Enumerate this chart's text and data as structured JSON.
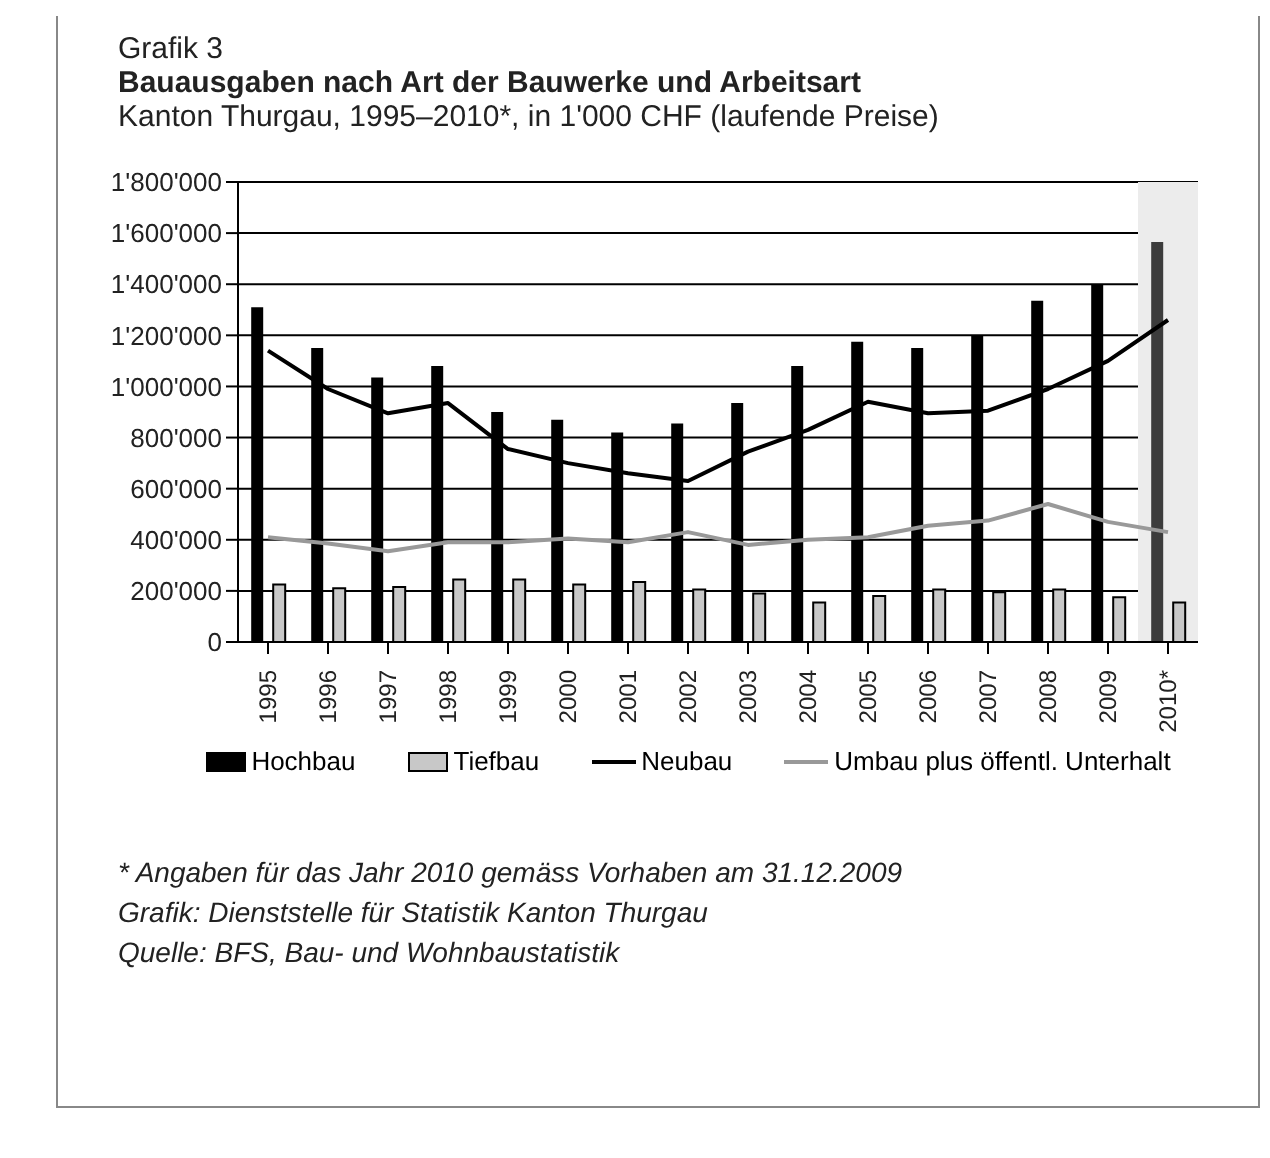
{
  "chart_data": {
    "type": "bar",
    "title": "Bauausgaben nach Art der Bauwerke und Arbeitsart",
    "subtitle": "Kanton Thurgau, 1995–2010*, in 1'000 CHF (laufende Preise)",
    "annotations": [
      "Grafik 3",
      "* Angaben für das Jahr 2010 gemäss Vorhaben am 31.12.2009",
      "Grafik: Dienststelle für Statistik Kanton Thurgau",
      "Quelle: BFS, Bau- und Wohnbaustatistik"
    ],
    "categories": [
      "1995",
      "1996",
      "1997",
      "1998",
      "1999",
      "2000",
      "2001",
      "2002",
      "2003",
      "2004",
      "2005",
      "2006",
      "2007",
      "2008",
      "2009",
      "2010*"
    ],
    "series": [
      {
        "name": "Hochbau",
        "color": "#000000",
        "colors": [
          "#000000",
          "#000000",
          "#000000",
          "#000000",
          "#000000",
          "#000000",
          "#000000",
          "#000000",
          "#000000",
          "#000000",
          "#000000",
          "#000000",
          "#000000",
          "#000000",
          "#000000",
          "#3c3c3c"
        ],
        "values": [
          1310000,
          1150000,
          1035000,
          1080000,
          900000,
          870000,
          820000,
          855000,
          935000,
          1080000,
          1175000,
          1150000,
          1200000,
          1335000,
          1400000,
          1565000
        ]
      },
      {
        "name": "Tiefbau",
        "color": "#c8c8c8",
        "values": [
          225000,
          210000,
          215000,
          245000,
          245000,
          225000,
          235000,
          205000,
          190000,
          155000,
          180000,
          205000,
          195000,
          205000,
          175000,
          155000
        ]
      },
      {
        "name": "Neubau",
        "type": "line",
        "color": "#000000",
        "values": [
          1140000,
          990000,
          895000,
          935000,
          755000,
          700000,
          660000,
          630000,
          745000,
          830000,
          940000,
          895000,
          905000,
          990000,
          1100000,
          1260000
        ]
      },
      {
        "name": "Umbau plus öffentl. Unterhalt",
        "type": "line",
        "color": "#999999",
        "values": [
          410000,
          385000,
          355000,
          390000,
          390000,
          405000,
          390000,
          430000,
          380000,
          400000,
          410000,
          455000,
          475000,
          540000,
          470000,
          430000
        ]
      }
    ],
    "bands": [
      {
        "axis": "x",
        "from": "2010*",
        "to": "2010*",
        "color": "#ececec"
      }
    ],
    "ylim": [
      0,
      1800000
    ],
    "yticks": [
      0,
      {
        "value": 200000,
        "label": "200'000"
      },
      {
        "value": 400000,
        "label": "400'000"
      },
      {
        "value": 600000,
        "label": "600'000"
      },
      {
        "value": 800000,
        "label": "800'000"
      },
      {
        "value": 1000000,
        "label": "1'000'000"
      },
      {
        "value": 1200000,
        "label": "1'200'000"
      },
      {
        "value": 1400000,
        "label": "1'400'000"
      },
      {
        "value": 1600000,
        "label": "1'600'000"
      },
      {
        "value": 1800000,
        "label": "1'800'000"
      }
    ],
    "grid": "y",
    "legend": "bottom",
    "marker": "none",
    "line_style": "solid"
  }
}
